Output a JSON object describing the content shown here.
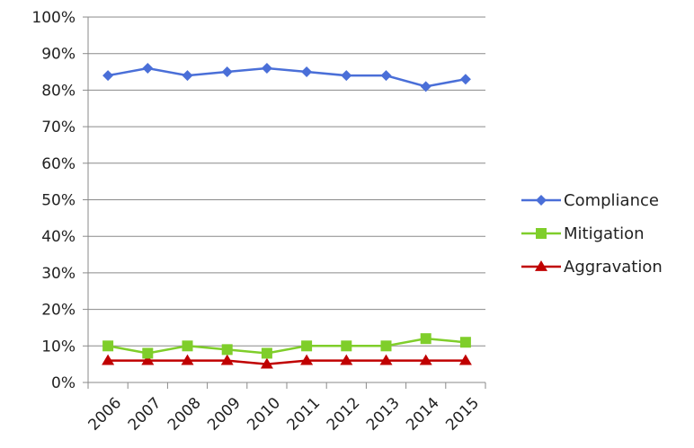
{
  "chart_data": {
    "type": "line",
    "title": "",
    "xlabel": "",
    "ylabel": "",
    "x": [
      "2006",
      "2007",
      "2008",
      "2009",
      "2010",
      "2011",
      "2012",
      "2013",
      "2014",
      "2015"
    ],
    "ylim": [
      0,
      100
    ],
    "yticks": [
      "0%",
      "10%",
      "20%",
      "30%",
      "40%",
      "50%",
      "60%",
      "70%",
      "80%",
      "90%",
      "100%"
    ],
    "grid": "horizontal",
    "legend_position": "right",
    "series": [
      {
        "name": "Compliance",
        "color": "#4a6fd8",
        "marker": "diamond",
        "values": [
          84,
          86,
          84,
          85,
          86,
          85,
          84,
          84,
          81,
          83
        ]
      },
      {
        "name": "Mitigation",
        "color": "#7fce2a",
        "marker": "square",
        "values": [
          10,
          8,
          10,
          9,
          8,
          10,
          10,
          10,
          12,
          11
        ]
      },
      {
        "name": "Aggravation",
        "color": "#c00000",
        "marker": "triangle",
        "values": [
          6,
          6,
          6,
          6,
          5,
          6,
          6,
          6,
          6,
          6
        ]
      }
    ]
  }
}
